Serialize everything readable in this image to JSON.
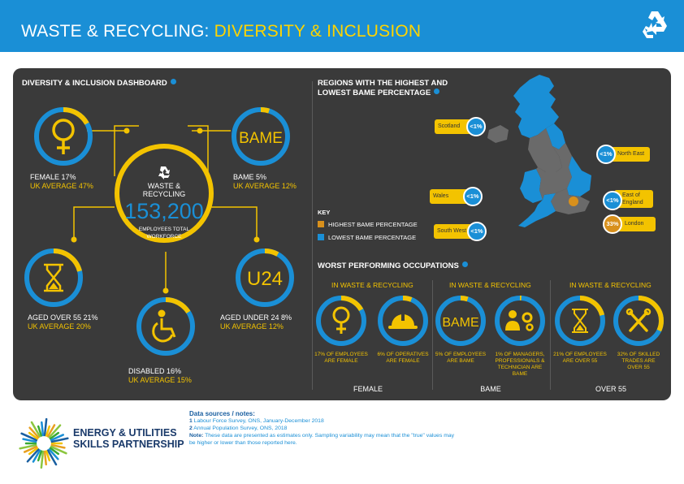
{
  "header": {
    "title_main": "WASTE & RECYCLING:",
    "title_sub": " DIVERSITY & INCLUSION",
    "icon": "recycle-icon"
  },
  "dashboard": {
    "title": "DIVERSITY & INCLUSION DASHBOARD",
    "center": {
      "line1": "WASTE &",
      "line2": "RECYCLING",
      "total": "153,200",
      "caption1": "EMPLOYEES TOTAL",
      "caption2": "WORKFORCE"
    },
    "female": {
      "label": "FEMALE 17%",
      "avg": "UK AVERAGE 47%",
      "value": 0.17,
      "icon": "female-symbol-icon"
    },
    "bame": {
      "label": "BAME 5%",
      "avg": "UK AVERAGE 12%",
      "value": 0.05,
      "text": "BAME"
    },
    "over55": {
      "label": "AGED OVER 55 21%",
      "avg": "UK AVERAGE 20%",
      "value": 0.21,
      "icon": "hourglass-icon"
    },
    "disabled": {
      "label": "DISABLED 16%",
      "avg": "UK AVERAGE 15%",
      "value": 0.16,
      "icon": "wheelchair-icon"
    },
    "under24": {
      "label": "AGED UNDER 24 8%",
      "avg": "UK AVERAGE 12%",
      "value": 0.08,
      "text": "U24"
    }
  },
  "regions": {
    "title1": "REGIONS WITH THE HIGHEST AND",
    "title2": "LOWEST BAME PERCENTAGE",
    "items": [
      {
        "name": "Scotland",
        "value": "<1%"
      },
      {
        "name": "North East",
        "value": "<1%"
      },
      {
        "name": "Wales",
        "value": "<1%"
      },
      {
        "name": "East of",
        "name2": "England",
        "value": "<1%"
      },
      {
        "name": "South West",
        "value": "<1%"
      },
      {
        "name": "London",
        "value": "33%"
      }
    ],
    "key": {
      "title": "KEY",
      "high": "HIGHEST BAME PERCENTAGE",
      "low": "LOWEST BAME PERCENTAGE",
      "high_color": "#d8901c",
      "low_color": "#1a8fd6"
    }
  },
  "occupations": {
    "title": "WORST PERFORMING OCCUPATIONS",
    "groups": [
      {
        "head": "IN WASTE & RECYCLING",
        "foot": "FEMALE",
        "items": [
          {
            "cap1": "17% OF EMPLOYEES",
            "cap2": "ARE FEMALE",
            "cap3": "",
            "cap4": "",
            "value": 0.17,
            "icon": "female-symbol-icon"
          },
          {
            "cap1": "6% OF OPERATIVES",
            "cap2": "ARE FEMALE",
            "cap3": "",
            "cap4": "",
            "value": 0.06,
            "icon": "hard-hat-icon"
          }
        ]
      },
      {
        "head": "IN WASTE & RECYCLING",
        "foot": "BAME",
        "items": [
          {
            "cap1": "5% OF EMPLOYEES",
            "cap2": "ARE BAME",
            "cap3": "",
            "cap4": "",
            "value": 0.05,
            "text": "BAME"
          },
          {
            "cap1": "1% OF MANAGERS,",
            "cap2": "PROFESSIONALS &",
            "cap3": "TECHNICIAN ARE",
            "cap4": "BAME",
            "value": 0.01,
            "icon": "manager-gears-icon"
          }
        ]
      },
      {
        "head": "IN WASTE & RECYCLING",
        "foot": "OVER 55",
        "items": [
          {
            "cap1": "21% OF EMPLOYEES",
            "cap2": "ARE OVER 55",
            "cap3": "",
            "cap4": "",
            "value": 0.21,
            "icon": "hourglass-icon"
          },
          {
            "cap1": "32% OF SKILLED",
            "cap2": "TRADES ARE",
            "cap3": "OVER 55",
            "cap4": "",
            "value": 0.32,
            "icon": "tools-icon"
          }
        ]
      }
    ]
  },
  "footer": {
    "notes_title": "Data sources / notes:",
    "src1_num": "1",
    "src1": " Labour Force Survey, ONS, January-December 2018",
    "src2_num": "2",
    "src2": " Annual Population Survey, ONS, 2018",
    "note_label": "Note:",
    "note": " These data are presented as estimates only. Sampling variability may mean that the \"true\" values may be higher or lower than those reported here.",
    "logo_line1": "ENERGY & UTILITIES",
    "logo_line2": "SKILLS PARTNERSHIP"
  },
  "colors": {
    "blue": "#1a8fd6",
    "yellow": "#f3c300",
    "panel": "#3a3a3a"
  }
}
